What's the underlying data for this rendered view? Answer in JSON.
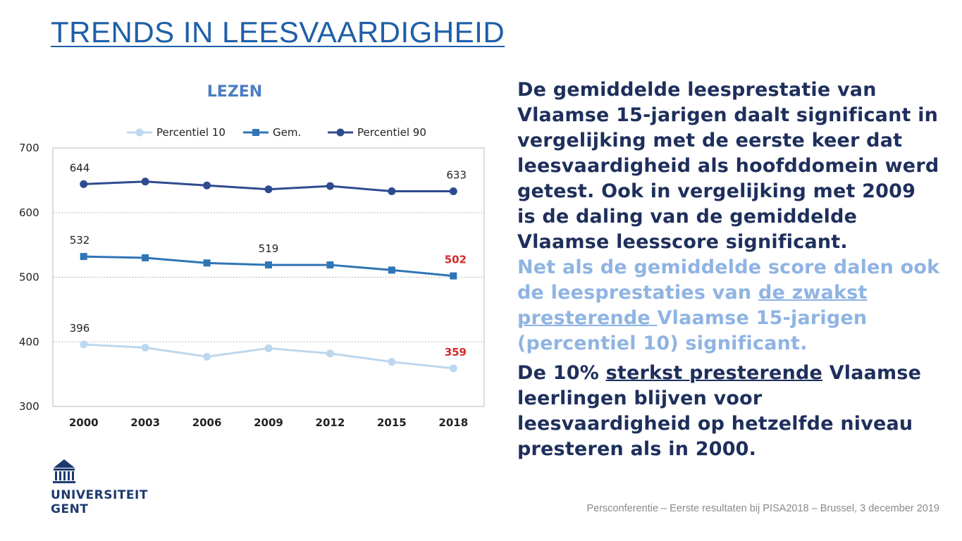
{
  "slide": {
    "title": "TRENDS IN LEESVAARDIGHEID",
    "footer": "Persconferentie – Eerste resultaten bij PISA2018 – Brussel, 3 december 2019"
  },
  "logo": {
    "line1": "UNIVERSITEIT",
    "line2": "GENT"
  },
  "text": {
    "p1": "De gemiddelde leesprestatie van Vlaamse 15-jarigen daalt significant in vergelijking met de eerste keer dat leesvaardigheid als hoofddomein werd getest. Ook in vergelijking met 2009 is de daling van de gemiddelde Vlaamse leesscore significant.",
    "p2_before": "Net als de gemiddelde score dalen ook de leesprestaties van ",
    "p2_ul": "de zwakst presterende ",
    "p2_after": "Vlaamse 15-jarigen (percentiel 10) significant.",
    "p3_before": "De 10% ",
    "p3_ul": "sterkst presterende",
    "p3_after": " Vlaamse leerlingen blijven voor leesvaardigheid op hetzelfde niveau presteren als in 2000."
  },
  "colors": {
    "p10": "#bdd7ee",
    "gem": "#2e75b6",
    "p90": "#2f4b8f",
    "grid": "#b8b8b8",
    "red": "#d12a2a"
  },
  "chart_data": {
    "type": "line",
    "title": "LEZEN",
    "categories": [
      "2000",
      "2003",
      "2006",
      "2009",
      "2012",
      "2015",
      "2018"
    ],
    "ylim": [
      300,
      700
    ],
    "yticks": [
      300,
      400,
      500,
      600,
      700
    ],
    "grid": true,
    "legend_position": "top",
    "series": [
      {
        "name": "Percentiel 10",
        "key": "p10",
        "marker": "circle",
        "values": [
          396,
          391,
          377,
          390,
          382,
          369,
          359
        ]
      },
      {
        "name": "Gem.",
        "key": "gem",
        "marker": "square",
        "values": [
          532,
          530,
          522,
          519,
          519,
          511,
          502
        ]
      },
      {
        "name": "Percentiel 90",
        "key": "p90",
        "marker": "circle",
        "values": [
          644,
          648,
          642,
          636,
          641,
          633,
          633
        ]
      }
    ],
    "data_labels": [
      {
        "series": 0,
        "index": 0,
        "text": "396",
        "highlight": false
      },
      {
        "series": 0,
        "index": 6,
        "text": "359",
        "highlight": true
      },
      {
        "series": 1,
        "index": 0,
        "text": "532",
        "highlight": false
      },
      {
        "series": 1,
        "index": 3,
        "text": "519",
        "highlight": false
      },
      {
        "series": 1,
        "index": 6,
        "text": "502",
        "highlight": true
      },
      {
        "series": 2,
        "index": 0,
        "text": "644",
        "highlight": false
      },
      {
        "series": 2,
        "index": 6,
        "text": "633",
        "highlight": false
      }
    ]
  }
}
